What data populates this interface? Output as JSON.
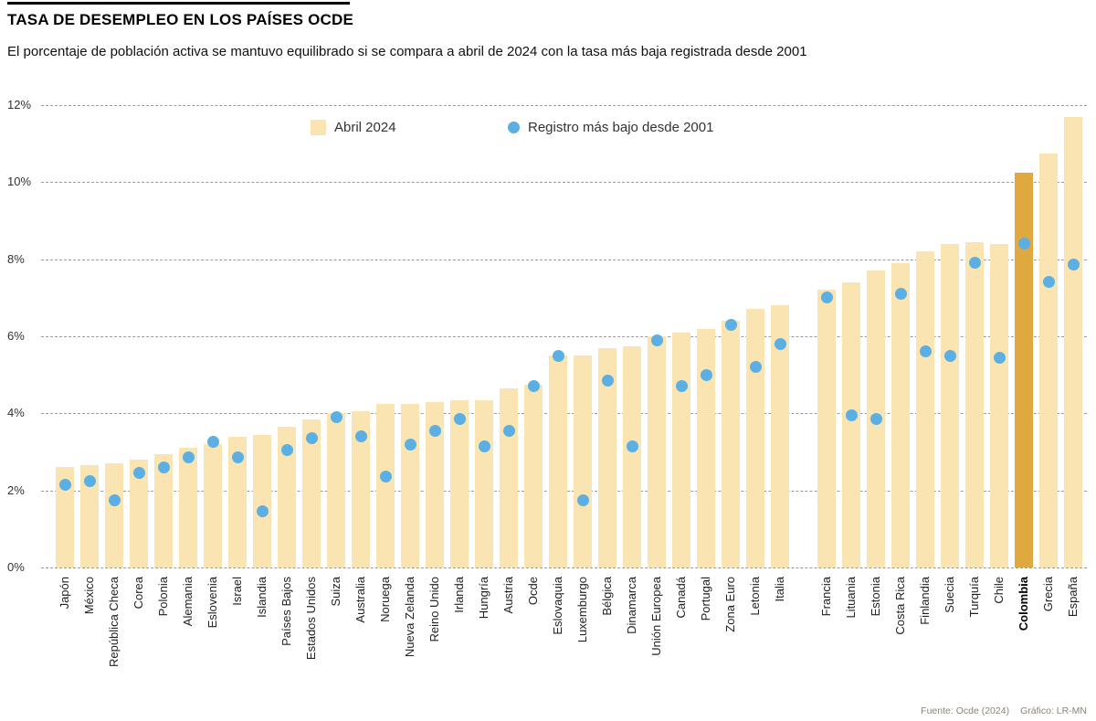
{
  "header": {
    "title": "TASA DE DESEMPLEO EN LOS PAÍSES OCDE",
    "subtitle": "El porcentaje de población activa se mantuvo equilibrado si se compara a abril de 2024 con la tasa más baja registrada desde 2001"
  },
  "legend": {
    "bar_label": "Abril 2024",
    "dot_label": "Registro más bajo desde 2001"
  },
  "footer": {
    "source": "Fuente: Ocde (2024)",
    "credit": "Gráfico: LR-MN"
  },
  "colors": {
    "bar": "#FAE5B2",
    "bar_highlight": "#E0A93F",
    "dot": "#5BAFE2",
    "grid": "#9A9A9A",
    "text": "#222222"
  },
  "chart_data": {
    "type": "bar",
    "title": "TASA DE DESEMPLEO EN LOS PAÍSES OCDE",
    "xlabel": "",
    "ylabel": "",
    "ylim": [
      0,
      12
    ],
    "yticks": [
      "0%",
      "2%",
      "4%",
      "6%",
      "8%",
      "10%",
      "12%"
    ],
    "grid": "horizontal-dashed",
    "legend_position": "top-center",
    "highlight_category": "Colombia",
    "group_gap_after": "Italia",
    "categories": [
      "Japón",
      "México",
      "República Checa",
      "Corea",
      "Polonia",
      "Alemania",
      "Eslovenia",
      "Israel",
      "Islandia",
      "Países Bajos",
      "Estados Unidos",
      "Suiza",
      "Australia",
      "Noruega",
      "Nueva Zelanda",
      "Reino Unido",
      "Irlanda",
      "Hungría",
      "Austria",
      "Ocde",
      "Eslovaquia",
      "Luxemburgo",
      "Bélgica",
      "Dinamarca",
      "Unión Europea",
      "Canadá",
      "Portugal",
      "Zona Euro",
      "Letonia",
      "Italia",
      "Francia",
      "Lituania",
      "Estonia",
      "Costa Rica",
      "Finlandia",
      "Suecia",
      "Turquía",
      "Chile",
      "Colombia",
      "Grecia",
      "España"
    ],
    "series": [
      {
        "name": "Abril 2024",
        "type": "bar",
        "values": [
          2.6,
          2.65,
          2.7,
          2.8,
          2.95,
          3.1,
          3.2,
          3.4,
          3.45,
          3.65,
          3.85,
          4.0,
          4.05,
          4.25,
          4.25,
          4.3,
          4.35,
          4.35,
          4.65,
          4.75,
          5.5,
          5.5,
          5.7,
          5.75,
          6.0,
          6.1,
          6.2,
          6.4,
          6.7,
          6.8,
          7.2,
          7.4,
          7.7,
          7.9,
          8.2,
          8.4,
          8.45,
          8.4,
          10.25,
          10.75,
          11.7
        ]
      },
      {
        "name": "Registro más bajo desde 2001",
        "type": "scatter",
        "values": [
          2.15,
          2.25,
          1.75,
          2.45,
          2.6,
          2.85,
          3.25,
          2.85,
          1.45,
          3.05,
          3.35,
          3.9,
          3.4,
          2.35,
          3.2,
          3.55,
          3.85,
          3.15,
          3.55,
          4.7,
          5.5,
          1.75,
          4.85,
          3.15,
          5.9,
          4.7,
          5.0,
          6.3,
          5.2,
          5.8,
          7.0,
          3.95,
          3.85,
          7.1,
          5.6,
          5.5,
          7.9,
          5.45,
          8.4,
          7.4,
          7.85
        ]
      }
    ]
  }
}
